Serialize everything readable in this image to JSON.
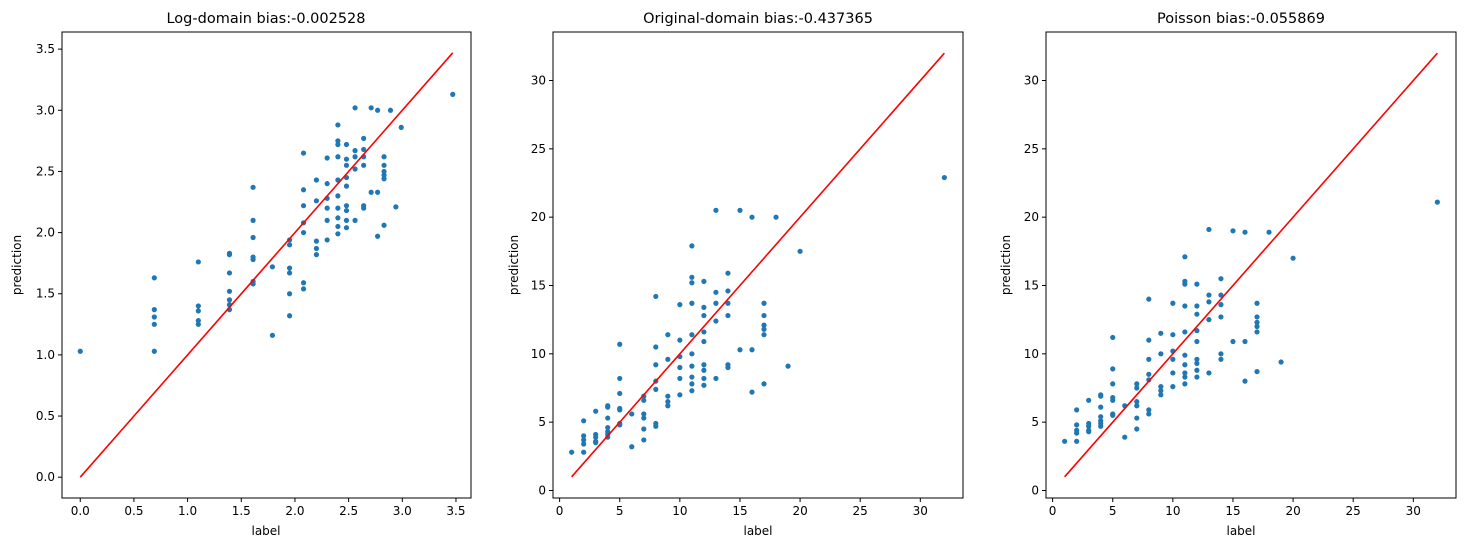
{
  "colors": {
    "points": "#1f77b4",
    "line": "#ff0000",
    "axes": "#000000",
    "background": "#ffffff"
  },
  "chart_data": [
    {
      "type": "scatter",
      "title": "Log-domain bias:-0.002528",
      "xlabel": "label",
      "ylabel": "prediction",
      "xlim": [
        -0.17,
        3.64
      ],
      "ylim": [
        -0.17,
        3.64
      ],
      "xticks": [
        0.0,
        0.5,
        1.0,
        1.5,
        2.0,
        2.5,
        3.0,
        3.5
      ],
      "yticks": [
        0.0,
        0.5,
        1.0,
        1.5,
        2.0,
        2.5,
        3.0,
        3.5
      ],
      "xtick_labels": [
        "0.0",
        "0.5",
        "1.0",
        "1.5",
        "2.0",
        "2.5",
        "3.0",
        "3.5"
      ],
      "ytick_labels": [
        "0.0",
        "0.5",
        "1.0",
        "1.5",
        "2.0",
        "2.5",
        "3.0",
        "3.5"
      ],
      "grid": false,
      "reference_line": {
        "x": [
          0.0,
          3.47
        ],
        "y": [
          0.0,
          3.47
        ]
      },
      "points": [
        [
          0.0,
          1.03
        ],
        [
          0.69,
          1.63
        ],
        [
          0.69,
          1.37
        ],
        [
          0.69,
          1.31
        ],
        [
          0.69,
          1.25
        ],
        [
          0.69,
          1.03
        ],
        [
          1.1,
          1.76
        ],
        [
          1.1,
          1.4
        ],
        [
          1.1,
          1.36
        ],
        [
          1.1,
          1.28
        ],
        [
          1.1,
          1.25
        ],
        [
          1.39,
          1.83
        ],
        [
          1.39,
          1.82
        ],
        [
          1.39,
          1.67
        ],
        [
          1.39,
          1.52
        ],
        [
          1.39,
          1.45
        ],
        [
          1.39,
          1.41
        ],
        [
          1.39,
          1.37
        ],
        [
          1.61,
          2.37
        ],
        [
          1.61,
          2.1
        ],
        [
          1.61,
          1.96
        ],
        [
          1.61,
          1.8
        ],
        [
          1.61,
          1.78
        ],
        [
          1.61,
          1.6
        ],
        [
          1.61,
          1.58
        ],
        [
          1.79,
          1.72
        ],
        [
          1.79,
          1.16
        ],
        [
          1.95,
          1.94
        ],
        [
          1.95,
          1.9
        ],
        [
          1.95,
          1.71
        ],
        [
          1.95,
          1.67
        ],
        [
          1.95,
          1.5
        ],
        [
          1.95,
          1.32
        ],
        [
          2.08,
          2.65
        ],
        [
          2.08,
          2.35
        ],
        [
          2.08,
          2.22
        ],
        [
          2.08,
          2.08
        ],
        [
          2.08,
          2.0
        ],
        [
          2.08,
          1.59
        ],
        [
          2.08,
          1.54
        ],
        [
          2.2,
          2.43
        ],
        [
          2.2,
          2.26
        ],
        [
          2.2,
          1.93
        ],
        [
          2.2,
          1.87
        ],
        [
          2.2,
          1.82
        ],
        [
          2.3,
          2.61
        ],
        [
          2.3,
          2.4
        ],
        [
          2.3,
          2.28
        ],
        [
          2.3,
          2.2
        ],
        [
          2.3,
          2.1
        ],
        [
          2.3,
          1.94
        ],
        [
          2.4,
          2.88
        ],
        [
          2.4,
          2.75
        ],
        [
          2.4,
          2.72
        ],
        [
          2.4,
          2.62
        ],
        [
          2.4,
          2.43
        ],
        [
          2.4,
          2.3
        ],
        [
          2.4,
          2.2
        ],
        [
          2.4,
          2.12
        ],
        [
          2.4,
          2.05
        ],
        [
          2.4,
          1.99
        ],
        [
          2.48,
          2.72
        ],
        [
          2.48,
          2.6
        ],
        [
          2.48,
          2.55
        ],
        [
          2.48,
          2.45
        ],
        [
          2.48,
          2.38
        ],
        [
          2.48,
          2.22
        ],
        [
          2.48,
          2.18
        ],
        [
          2.48,
          2.1
        ],
        [
          2.48,
          2.04
        ],
        [
          2.56,
          3.02
        ],
        [
          2.56,
          2.67
        ],
        [
          2.56,
          2.62
        ],
        [
          2.56,
          2.52
        ],
        [
          2.56,
          2.1
        ],
        [
          2.64,
          2.77
        ],
        [
          2.64,
          2.68
        ],
        [
          2.64,
          2.62
        ],
        [
          2.64,
          2.55
        ],
        [
          2.64,
          2.22
        ],
        [
          2.64,
          2.2
        ],
        [
          2.71,
          3.02
        ],
        [
          2.71,
          2.33
        ],
        [
          2.77,
          3.0
        ],
        [
          2.77,
          2.33
        ],
        [
          2.77,
          1.97
        ],
        [
          2.83,
          2.62
        ],
        [
          2.83,
          2.55
        ],
        [
          2.83,
          2.5
        ],
        [
          2.83,
          2.47
        ],
        [
          2.83,
          2.44
        ],
        [
          2.83,
          2.06
        ],
        [
          2.89,
          3.0
        ],
        [
          2.94,
          2.21
        ],
        [
          2.99,
          2.86
        ],
        [
          3.47,
          3.13
        ]
      ]
    },
    {
      "type": "scatter",
      "title": "Original-domain bias:-0.437365",
      "xlabel": "label",
      "ylabel": "prediction",
      "xlim": [
        -0.55,
        33.55
      ],
      "ylim": [
        -0.55,
        33.55
      ],
      "xticks": [
        0,
        5,
        10,
        15,
        20,
        25,
        30
      ],
      "yticks": [
        0,
        5,
        10,
        15,
        20,
        25,
        30
      ],
      "xtick_labels": [
        "0",
        "5",
        "10",
        "15",
        "20",
        "25",
        "30"
      ],
      "ytick_labels": [
        "0",
        "5",
        "10",
        "15",
        "20",
        "25",
        "30"
      ],
      "grid": false,
      "reference_line": {
        "x": [
          1,
          32
        ],
        "y": [
          1,
          32
        ]
      },
      "points": [
        [
          1,
          2.8
        ],
        [
          2,
          5.1
        ],
        [
          2,
          4.0
        ],
        [
          2,
          3.7
        ],
        [
          2,
          3.4
        ],
        [
          2,
          2.8
        ],
        [
          3,
          5.8
        ],
        [
          3,
          4.1
        ],
        [
          3,
          3.9
        ],
        [
          3,
          3.6
        ],
        [
          3,
          3.5
        ],
        [
          4,
          6.2
        ],
        [
          4,
          6.1
        ],
        [
          4,
          5.3
        ],
        [
          4,
          4.6
        ],
        [
          4,
          4.3
        ],
        [
          4,
          4.1
        ],
        [
          4,
          3.9
        ],
        [
          5,
          10.7
        ],
        [
          5,
          8.2
        ],
        [
          5,
          7.1
        ],
        [
          5,
          6.0
        ],
        [
          5,
          5.9
        ],
        [
          5,
          4.9
        ],
        [
          5,
          4.8
        ],
        [
          6,
          5.6
        ],
        [
          6,
          3.2
        ],
        [
          7,
          6.9
        ],
        [
          7,
          6.6
        ],
        [
          7,
          5.6
        ],
        [
          7,
          5.3
        ],
        [
          7,
          4.5
        ],
        [
          7,
          3.7
        ],
        [
          8,
          14.2
        ],
        [
          8,
          10.5
        ],
        [
          8,
          9.2
        ],
        [
          8,
          8.0
        ],
        [
          8,
          7.4
        ],
        [
          8,
          4.9
        ],
        [
          8,
          4.7
        ],
        [
          9,
          11.4
        ],
        [
          9,
          9.6
        ],
        [
          9,
          6.9
        ],
        [
          9,
          6.5
        ],
        [
          9,
          6.2
        ],
        [
          10,
          13.6
        ],
        [
          10,
          11.0
        ],
        [
          10,
          9.8
        ],
        [
          10,
          9.0
        ],
        [
          10,
          8.2
        ],
        [
          10,
          7.0
        ],
        [
          11,
          17.9
        ],
        [
          11,
          15.6
        ],
        [
          11,
          15.2
        ],
        [
          11,
          13.7
        ],
        [
          11,
          11.4
        ],
        [
          11,
          10.0
        ],
        [
          11,
          9.1
        ],
        [
          11,
          8.3
        ],
        [
          11,
          7.8
        ],
        [
          11,
          7.3
        ],
        [
          12,
          15.3
        ],
        [
          12,
          13.4
        ],
        [
          12,
          12.8
        ],
        [
          12,
          11.6
        ],
        [
          12,
          10.9
        ],
        [
          12,
          9.2
        ],
        [
          12,
          8.8
        ],
        [
          12,
          8.2
        ],
        [
          12,
          7.7
        ],
        [
          13,
          20.5
        ],
        [
          13,
          14.5
        ],
        [
          13,
          13.7
        ],
        [
          13,
          12.4
        ],
        [
          13,
          8.2
        ],
        [
          14,
          15.9
        ],
        [
          14,
          14.6
        ],
        [
          14,
          13.7
        ],
        [
          14,
          12.8
        ],
        [
          14,
          9.2
        ],
        [
          14,
          9.0
        ],
        [
          15,
          20.5
        ],
        [
          15,
          10.3
        ],
        [
          16,
          20.0
        ],
        [
          16,
          10.3
        ],
        [
          16,
          7.2
        ],
        [
          17,
          13.7
        ],
        [
          17,
          12.8
        ],
        [
          17,
          12.1
        ],
        [
          17,
          11.8
        ],
        [
          17,
          11.4
        ],
        [
          17,
          7.8
        ],
        [
          18,
          20.0
        ],
        [
          19,
          9.1
        ],
        [
          20,
          17.5
        ],
        [
          32,
          22.9
        ]
      ]
    },
    {
      "type": "scatter",
      "title": "Poisson bias:-0.055869",
      "xlabel": "label",
      "ylabel": "prediction",
      "xlim": [
        -0.55,
        33.55
      ],
      "ylim": [
        -0.55,
        33.55
      ],
      "xticks": [
        0,
        5,
        10,
        15,
        20,
        25,
        30
      ],
      "yticks": [
        0,
        5,
        10,
        15,
        20,
        25,
        30
      ],
      "xtick_labels": [
        "0",
        "5",
        "10",
        "15",
        "20",
        "25",
        "30"
      ],
      "ytick_labels": [
        "0",
        "5",
        "10",
        "15",
        "20",
        "25",
        "30"
      ],
      "grid": false,
      "reference_line": {
        "x": [
          1,
          32
        ],
        "y": [
          1,
          32
        ]
      },
      "points": [
        [
          1,
          3.6
        ],
        [
          2,
          5.9
        ],
        [
          2,
          4.8
        ],
        [
          2,
          4.4
        ],
        [
          2,
          4.2
        ],
        [
          2,
          3.6
        ],
        [
          3,
          6.6
        ],
        [
          3,
          4.9
        ],
        [
          3,
          4.7
        ],
        [
          3,
          4.4
        ],
        [
          3,
          4.3
        ],
        [
          4,
          7.0
        ],
        [
          4,
          6.9
        ],
        [
          4,
          6.1
        ],
        [
          4,
          5.4
        ],
        [
          4,
          5.1
        ],
        [
          4,
          4.9
        ],
        [
          4,
          4.7
        ],
        [
          5,
          11.2
        ],
        [
          5,
          8.9
        ],
        [
          5,
          7.8
        ],
        [
          5,
          6.8
        ],
        [
          5,
          6.6
        ],
        [
          5,
          5.6
        ],
        [
          5,
          5.5
        ],
        [
          6,
          6.2
        ],
        [
          6,
          3.9
        ],
        [
          7,
          7.8
        ],
        [
          7,
          7.5
        ],
        [
          7,
          6.5
        ],
        [
          7,
          6.2
        ],
        [
          7,
          5.3
        ],
        [
          7,
          4.5
        ],
        [
          8,
          14.0
        ],
        [
          8,
          11.0
        ],
        [
          8,
          9.6
        ],
        [
          8,
          8.5
        ],
        [
          8,
          8.1
        ],
        [
          8,
          5.9
        ],
        [
          8,
          5.6
        ],
        [
          9,
          11.5
        ],
        [
          9,
          10.0
        ],
        [
          9,
          7.6
        ],
        [
          9,
          7.3
        ],
        [
          9,
          7.0
        ],
        [
          10,
          13.7
        ],
        [
          10,
          11.4
        ],
        [
          10,
          10.2
        ],
        [
          10,
          9.6
        ],
        [
          10,
          8.6
        ],
        [
          10,
          7.6
        ],
        [
          11,
          17.1
        ],
        [
          11,
          15.3
        ],
        [
          11,
          15.1
        ],
        [
          11,
          13.5
        ],
        [
          11,
          11.6
        ],
        [
          11,
          9.9
        ],
        [
          11,
          9.2
        ],
        [
          11,
          8.6
        ],
        [
          11,
          8.3
        ],
        [
          11,
          7.8
        ],
        [
          12,
          15.1
        ],
        [
          12,
          13.5
        ],
        [
          12,
          12.9
        ],
        [
          12,
          11.7
        ],
        [
          12,
          10.9
        ],
        [
          12,
          9.6
        ],
        [
          12,
          9.3
        ],
        [
          12,
          8.8
        ],
        [
          12,
          8.3
        ],
        [
          13,
          19.1
        ],
        [
          13,
          14.3
        ],
        [
          13,
          13.8
        ],
        [
          13,
          12.5
        ],
        [
          13,
          8.6
        ],
        [
          14,
          15.5
        ],
        [
          14,
          14.3
        ],
        [
          14,
          13.6
        ],
        [
          14,
          12.7
        ],
        [
          14,
          10.0
        ],
        [
          14,
          9.6
        ],
        [
          15,
          19.0
        ],
        [
          15,
          10.9
        ],
        [
          16,
          18.9
        ],
        [
          16,
          10.9
        ],
        [
          16,
          8.0
        ],
        [
          17,
          13.7
        ],
        [
          17,
          12.7
        ],
        [
          17,
          12.3
        ],
        [
          17,
          12.0
        ],
        [
          17,
          11.6
        ],
        [
          17,
          8.7
        ],
        [
          18,
          18.9
        ],
        [
          19,
          9.4
        ],
        [
          20,
          17.0
        ],
        [
          32,
          21.1
        ]
      ]
    }
  ]
}
